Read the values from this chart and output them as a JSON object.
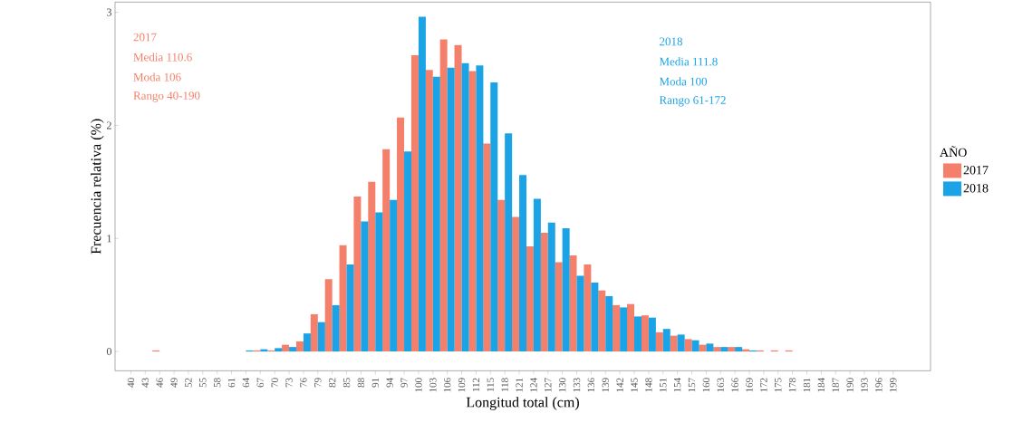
{
  "chart_data": {
    "type": "bar",
    "xlabel": "Longitud total (cm)",
    "ylabel": "Frecuencia relativa (%)",
    "legend_title": "AÑO",
    "categories": [
      "40",
      "43",
      "46",
      "49",
      "52",
      "55",
      "58",
      "61",
      "64",
      "67",
      "70",
      "73",
      "76",
      "79",
      "82",
      "85",
      "88",
      "91",
      "94",
      "97",
      "100",
      "103",
      "106",
      "109",
      "112",
      "115",
      "118",
      "121",
      "124",
      "127",
      "130",
      "133",
      "136",
      "139",
      "142",
      "145",
      "148",
      "151",
      "154",
      "157",
      "160",
      "163",
      "166",
      "169",
      "172",
      "175",
      "178",
      "181",
      "184",
      "187",
      "190",
      "193",
      "196",
      "199"
    ],
    "series": [
      {
        "name": "2017",
        "color": "#f4806b",
        "values": [
          0,
          0,
          0.01,
          0,
          0,
          0,
          0,
          0,
          0,
          0.01,
          0.01,
          0.06,
          0.09,
          0.33,
          0.64,
          0.94,
          1.37,
          1.5,
          1.79,
          2.07,
          2.62,
          2.49,
          2.76,
          2.71,
          2.48,
          1.84,
          1.34,
          1.19,
          0.93,
          1.05,
          0.79,
          0.85,
          0.77,
          0.54,
          0.41,
          0.42,
          0.32,
          0.17,
          0.14,
          0.11,
          0.06,
          0.04,
          0.04,
          0.02,
          0.01,
          0.01,
          0.01,
          0,
          0,
          0,
          0,
          0,
          0,
          0
        ]
      },
      {
        "name": "2018",
        "color": "#1ba3e6",
        "values": [
          0,
          0,
          0,
          0,
          0,
          0,
          0,
          0,
          0.01,
          0.02,
          0.03,
          0.04,
          0.16,
          0.26,
          0.41,
          0.77,
          1.15,
          1.23,
          1.34,
          1.77,
          2.96,
          2.43,
          2.51,
          2.55,
          2.53,
          2.38,
          1.93,
          1.56,
          1.35,
          1.14,
          1.09,
          0.67,
          0.61,
          0.49,
          0.39,
          0.31,
          0.3,
          0.2,
          0.15,
          0.1,
          0.07,
          0.04,
          0.04,
          0.01,
          0,
          0,
          0,
          0,
          0,
          0,
          0,
          0,
          0,
          0
        ]
      }
    ],
    "annotations": [
      "2017",
      "Media  110.6",
      "Moda   106",
      "Rango 40-190",
      "2018",
      "Media  111.8",
      "Moda   100",
      "Rango 61-172"
    ],
    "ylim": [
      -0.17,
      3.09
    ],
    "yticks": [
      0,
      1,
      2,
      3
    ],
    "grid": false,
    "legend": "right"
  }
}
